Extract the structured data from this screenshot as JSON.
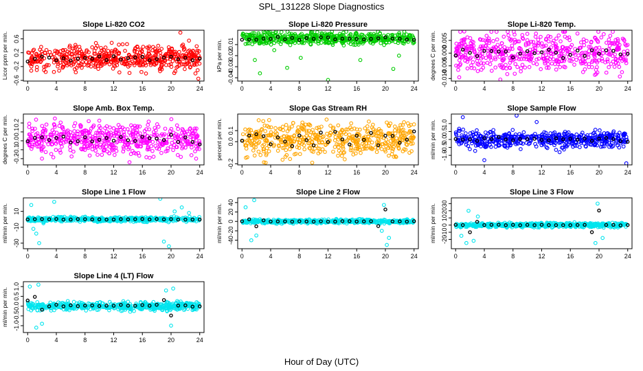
{
  "figure": {
    "title": "SPL_131228  Slope Diagnostics",
    "xlabel": "Hour of Day (UTC)"
  },
  "chart_data": [
    {
      "type": "scatter",
      "title": "Slope Li-820 CO2",
      "ylabel": "Licor ppm per min.",
      "color": "#ff0000",
      "xlim": [
        -0.6,
        24.6
      ],
      "ylim": [
        -0.62,
        0.85
      ],
      "yticks": [
        -0.6,
        -0.2,
        0.2,
        0.6
      ],
      "yticklabels": [
        "-0.6",
        "-0.2",
        "0.2",
        "0.6"
      ],
      "xticks": [
        0,
        4,
        8,
        12,
        16,
        20,
        24
      ],
      "xticklabels": [
        "0",
        "4",
        "8",
        "12",
        "16",
        "20",
        "24"
      ],
      "center": 0.05,
      "spread": 0.17,
      "hourly_mean_values": [
        -0.05,
        0.0,
        0.05,
        0.02,
        0.0,
        0.03,
        0.02,
        0.05,
        0.0,
        0.03,
        0.05,
        0.02,
        0.06,
        0.05,
        0.03,
        0.08,
        0.05,
        0.02,
        0.06,
        0.03,
        0.05,
        0.02,
        0.04,
        0.0,
        -0.02
      ],
      "outliers": [
        [
          21.3,
          0.78
        ],
        [
          22.5,
          0.55
        ],
        [
          23.4,
          -0.4
        ],
        [
          0.5,
          -0.32
        ],
        [
          23.8,
          -0.55
        ]
      ]
    },
    {
      "type": "scatter",
      "title": "Slope Li-820 Pressure",
      "ylabel": "kPa per min.",
      "color": "#00cc00",
      "xlim": [
        -0.6,
        24.6
      ],
      "ylim": [
        -0.043,
        0.003
      ],
      "yticks": [
        -0.04,
        -0.03,
        -0.02,
        -0.01
      ],
      "yticklabels": [
        "-0.04",
        "-0.03",
        "-0.02",
        "-0.01"
      ],
      "xticks": [
        0,
        4,
        8,
        12,
        16,
        20,
        24
      ],
      "xticklabels": [
        "0",
        "4",
        "8",
        "12",
        "16",
        "20",
        "24"
      ],
      "center": -0.0045,
      "spread": 0.0028,
      "hourly_mean_values": [
        -0.006,
        -0.005,
        -0.005,
        -0.004,
        -0.005,
        -0.004,
        -0.005,
        -0.004,
        -0.005,
        -0.004,
        -0.005,
        -0.004,
        -0.004,
        -0.005,
        -0.004,
        -0.005,
        -0.004,
        -0.005,
        -0.004,
        -0.005,
        -0.004,
        -0.005,
        -0.004,
        -0.005,
        -0.006
      ],
      "outliers": [
        [
          1.8,
          -0.024
        ],
        [
          2.5,
          -0.036
        ],
        [
          4.5,
          -0.015
        ],
        [
          6.3,
          -0.031
        ],
        [
          8.2,
          -0.022
        ],
        [
          12.0,
          -0.042
        ],
        [
          16.5,
          -0.024
        ],
        [
          21.1,
          -0.032
        ],
        [
          21.9,
          -0.02
        ]
      ]
    },
    {
      "type": "scatter",
      "title": "Slope Li-820 Temp.",
      "ylabel": "degrees C per min.",
      "color": "#ff00ff",
      "xlim": [
        -0.6,
        24.6
      ],
      "ylim": [
        -0.011,
        0.009
      ],
      "yticks": [
        -0.01,
        -0.005,
        0.0,
        0.005
      ],
      "yticklabels": [
        "-0.010",
        "-0.005",
        "0.000",
        "0.005"
      ],
      "xticks": [
        0,
        4,
        8,
        12,
        16,
        20,
        24
      ],
      "xticklabels": [
        "0",
        "4",
        "8",
        "12",
        "16",
        "20",
        "24"
      ],
      "center": 0.0,
      "spread": 0.0038,
      "hourly_mean_values": [
        0.0,
        0.001,
        0.0,
        -0.001,
        0.0,
        0.001,
        0.0,
        0.0,
        -0.001,
        0.0,
        0.001,
        0.0,
        0.0,
        0.001,
        0.0,
        -0.001,
        0.0,
        0.001,
        0.0,
        0.0,
        -0.001,
        0.0,
        0.001,
        0.0,
        0.0
      ],
      "outliers": [
        [
          0.5,
          -0.0095
        ],
        [
          1.2,
          0.0085
        ],
        [
          23.2,
          -0.0075
        ],
        [
          22.6,
          0.0055
        ]
      ]
    },
    {
      "type": "scatter",
      "title": "Slope Amb. Box Temp.",
      "ylabel": "degrees C per min.",
      "color": "#ff00ff",
      "xlim": [
        -0.6,
        24.6
      ],
      "ylim": [
        -0.27,
        0.3
      ],
      "yticks": [
        -0.2,
        -0.1,
        0.0,
        0.1,
        0.2
      ],
      "yticklabels": [
        "-0.2",
        "-0.1",
        "0.0",
        "0.1",
        "0.2"
      ],
      "xticks": [
        0,
        4,
        8,
        12,
        16,
        20,
        24
      ],
      "xticklabels": [
        "0",
        "4",
        "8",
        "12",
        "16",
        "20",
        "24"
      ],
      "center": 0.02,
      "spread": 0.085,
      "hourly_mean_values": [
        0.0,
        0.05,
        0.02,
        0.0,
        0.05,
        0.03,
        0.0,
        0.02,
        0.05,
        0.0,
        0.03,
        0.05,
        0.0,
        0.02,
        0.03,
        0.0,
        0.05,
        0.02,
        0.0,
        0.03,
        0.05,
        0.0,
        0.02,
        0.0,
        -0.02
      ],
      "outliers": [
        [
          2.0,
          -0.2
        ],
        [
          14.2,
          -0.24
        ],
        [
          3.8,
          0.25
        ],
        [
          23.5,
          -0.2
        ]
      ]
    },
    {
      "type": "scatter",
      "title": "Slope Gas Stream RH",
      "ylabel": "percent per min.",
      "color": "#ffa500",
      "xlim": [
        -0.6,
        24.6
      ],
      "ylim": [
        -0.21,
        0.25
      ],
      "yticks": [
        -0.2,
        0.0,
        0.1
      ],
      "yticklabels": [
        "-0.2",
        "0.0",
        "0.1"
      ],
      "xticks": [
        0,
        4,
        8,
        12,
        16,
        20,
        24
      ],
      "xticklabels": [
        "0",
        "4",
        "8",
        "12",
        "16",
        "20",
        "24"
      ],
      "center": 0.02,
      "spread": 0.07,
      "hourly_mean_values": [
        0.0,
        0.05,
        0.08,
        0.03,
        -0.02,
        0.05,
        0.0,
        -0.03,
        0.06,
        0.02,
        -0.05,
        0.07,
        0.0,
        0.1,
        0.02,
        -0.04,
        0.05,
        0.0,
        0.06,
        -0.02,
        0.04,
        0.05,
        0.0,
        0.03,
        0.08
      ],
      "outliers": [
        [
          9.8,
          -0.19
        ],
        [
          3.3,
          -0.19
        ],
        [
          11.8,
          0.2
        ]
      ]
    },
    {
      "type": "scatter",
      "title": "Slope Sample Flow",
      "ylabel": "ml/min per min.",
      "color": "#0000ff",
      "xlim": [
        -0.6,
        24.6
      ],
      "ylim": [
        -1.6,
        1.6
      ],
      "yticks": [
        -1.0,
        -0.5,
        0.0,
        0.5,
        1.0
      ],
      "yticklabels": [
        "-1.0",
        "-0.5",
        "0.0",
        "0.5",
        "1.0"
      ],
      "xticks": [
        0,
        4,
        8,
        12,
        16,
        20,
        24
      ],
      "xticklabels": [
        "0",
        "4",
        "8",
        "12",
        "16",
        "20",
        "24"
      ],
      "center": 0.0,
      "spread": 0.25,
      "hourly_mean_values": [
        0.1,
        0.05,
        0.0,
        -0.05,
        0.05,
        0.0,
        0.1,
        0.0,
        -0.05,
        0.05,
        0.0,
        0.05,
        0.0,
        -0.05,
        0.0,
        0.05,
        0.0,
        0.05,
        0.0,
        -0.05,
        0.0,
        0.05,
        0.0,
        -0.05,
        -0.15
      ],
      "outliers": [
        [
          1.0,
          1.4
        ],
        [
          4.0,
          -1.3
        ],
        [
          8.5,
          1.5
        ],
        [
          11.3,
          1.1
        ],
        [
          23.8,
          -1.5
        ],
        [
          14.5,
          -0.8
        ]
      ]
    },
    {
      "type": "scatter",
      "title": "Slope Line 1 Flow",
      "ylabel": "ml/min per min.",
      "color": "#00e5ee",
      "xlim": [
        -0.6,
        24.6
      ],
      "ylim": [
        -37,
        27
      ],
      "yticks": [
        -30,
        -10,
        10
      ],
      "yticklabels": [
        "-30",
        "-10",
        "10"
      ],
      "xticks": [
        0,
        4,
        8,
        12,
        16,
        20,
        24
      ],
      "xticklabels": [
        "0",
        "4",
        "8",
        "12",
        "16",
        "20",
        "24"
      ],
      "center": 0.0,
      "spread": 1.4,
      "hourly_mean_values": [
        0,
        0,
        0,
        0,
        0,
        0,
        0,
        0,
        0,
        0,
        0,
        0,
        0,
        0,
        0,
        0,
        0,
        0,
        0,
        0,
        0,
        0,
        0,
        0,
        0
      ],
      "outliers": [
        [
          0.5,
          18
        ],
        [
          0.8,
          -12
        ],
        [
          1.2,
          -18
        ],
        [
          1.6,
          -30
        ],
        [
          2.2,
          -5
        ],
        [
          3.7,
          22
        ],
        [
          18.5,
          26
        ],
        [
          19.0,
          -28
        ],
        [
          19.7,
          -34
        ],
        [
          20.5,
          10
        ],
        [
          21.5,
          15
        ],
        [
          22.5,
          8
        ]
      ]
    },
    {
      "type": "scatter",
      "title": "Slope Line 2 Flow",
      "ylabel": "ml/min per min.",
      "color": "#00e5ee",
      "xlim": [
        -0.6,
        24.6
      ],
      "ylim": [
        -58,
        50
      ],
      "yticks": [
        -40,
        -20,
        0,
        20,
        40
      ],
      "yticklabels": [
        "-40",
        "-20",
        "0",
        "20",
        "40"
      ],
      "xticks": [
        0,
        4,
        8,
        12,
        16,
        20,
        24
      ],
      "xticklabels": [
        "0",
        "4",
        "8",
        "12",
        "16",
        "20",
        "24"
      ],
      "center": 0.0,
      "spread": 2.0,
      "hourly_mean_values": [
        0,
        5,
        -10,
        2,
        0,
        0,
        0,
        0,
        0,
        0,
        0,
        0,
        0,
        0,
        0,
        0,
        0,
        0,
        0,
        -10,
        25,
        0,
        0,
        0,
        0
      ],
      "outliers": [
        [
          0.5,
          30
        ],
        [
          1.3,
          -40
        ],
        [
          1.7,
          45
        ],
        [
          2.0,
          -30
        ],
        [
          19.5,
          -20
        ],
        [
          19.8,
          35
        ],
        [
          20.2,
          -50
        ],
        [
          20.5,
          -35
        ]
      ]
    },
    {
      "type": "scatter",
      "title": "Slope Line 3 Flow",
      "ylabel": "ml/min per min.",
      "color": "#00e5ee",
      "xlim": [
        -0.6,
        24.6
      ],
      "ylim": [
        -33,
        38
      ],
      "yticks": [
        -20,
        -10,
        0,
        10,
        20,
        30
      ],
      "yticklabels": [
        "-20",
        "-10",
        "0",
        "10",
        "20",
        "30"
      ],
      "xticks": [
        0,
        4,
        8,
        12,
        16,
        20,
        24
      ],
      "xticklabels": [
        "0",
        "4",
        "8",
        "12",
        "16",
        "20",
        "24"
      ],
      "center": 0.0,
      "spread": 1.5,
      "hourly_mean_values": [
        0,
        0,
        -10,
        5,
        0,
        0,
        0,
        0,
        0,
        0,
        0,
        0,
        0,
        0,
        0,
        0,
        0,
        0,
        0,
        -10,
        20,
        0,
        0,
        0,
        0
      ],
      "outliers": [
        [
          0.8,
          -15
        ],
        [
          1.5,
          -25
        ],
        [
          1.8,
          20
        ],
        [
          2.5,
          -22
        ],
        [
          3.1,
          12
        ],
        [
          19.5,
          -25
        ],
        [
          19.8,
          30
        ],
        [
          20.5,
          -18
        ]
      ]
    },
    {
      "type": "scatter",
      "title": "Slope Line 4 (LT) Flow",
      "ylabel": "ml/min per min.",
      "color": "#00e5ee",
      "xlim": [
        -0.6,
        24.6
      ],
      "ylim": [
        -1.35,
        1.25
      ],
      "yticks": [
        -1.0,
        -0.5,
        0.0,
        0.5,
        1.0
      ],
      "yticklabels": [
        "-1.0",
        "-0.5",
        "0.0",
        "0.5",
        "1.0"
      ],
      "xticks": [
        0,
        4,
        8,
        12,
        16,
        20,
        24
      ],
      "xticklabels": [
        "0",
        "4",
        "8",
        "12",
        "16",
        "20",
        "24"
      ],
      "center": 0.0,
      "spread": 0.1,
      "hourly_mean_values": [
        0.3,
        0.5,
        -0.2,
        0.0,
        0.05,
        0.0,
        0.05,
        0.0,
        0.0,
        0.05,
        0.0,
        0.05,
        0.0,
        0.05,
        0.0,
        0.0,
        0.05,
        0.0,
        0.05,
        0.3,
        -0.5,
        0.0,
        0.05,
        0.0,
        0.0
      ],
      "outliers": [
        [
          0.3,
          1.0
        ],
        [
          1.5,
          1.1
        ],
        [
          1.2,
          -1.1
        ],
        [
          2.0,
          -0.9
        ],
        [
          19.3,
          0.8
        ],
        [
          20.0,
          -1.0
        ],
        [
          20.3,
          0.9
        ]
      ]
    }
  ]
}
